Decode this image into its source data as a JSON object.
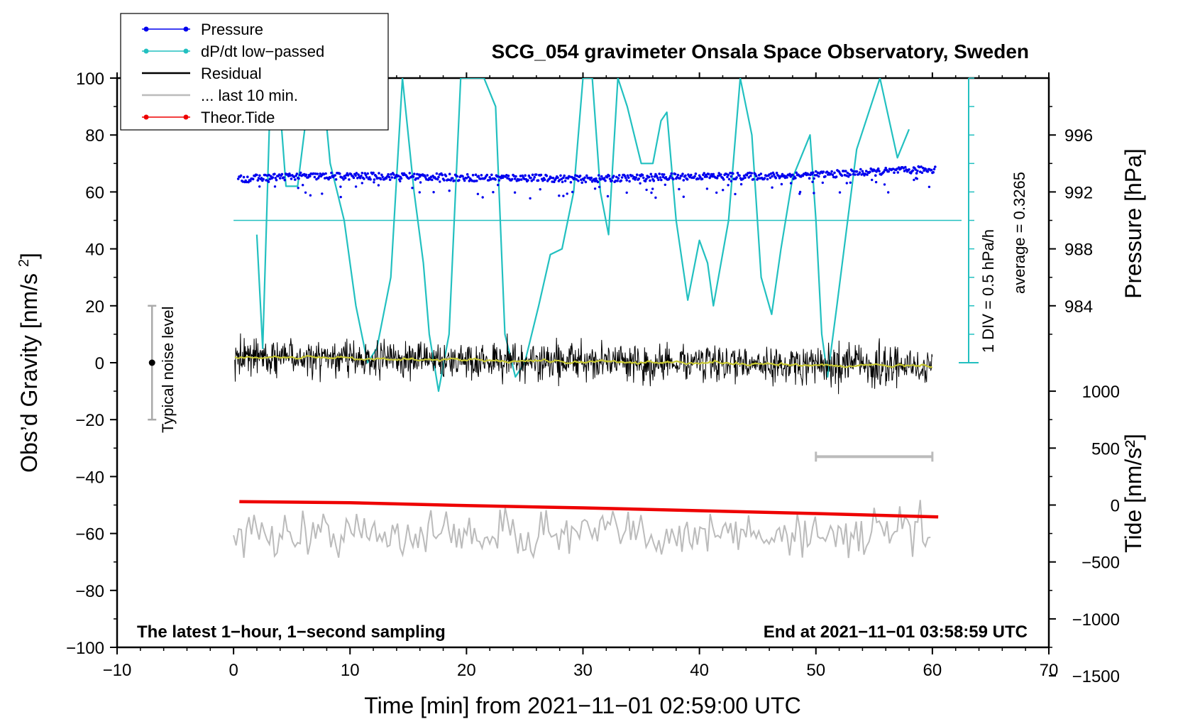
{
  "chart_data": {
    "type": "line",
    "title": "SCG_054 gravimeter Onsala Space Observatory, Sweden",
    "xlabel": "Time [min] from 2021−11−01 02:59:00 UTC",
    "ylabel_left": "Obs’d Gravity [nm/s²]",
    "ylabel_pressure": "Pressure [hPa]",
    "ylabel_tide": "Tide [nm/s²]",
    "xlim": [
      -10,
      70
    ],
    "ylim": [
      -100,
      100
    ],
    "pressure_range": [
      980,
      1000
    ],
    "tide_range": [
      -1500,
      1500
    ],
    "x_ticks": [
      "−10",
      "0",
      "10",
      "20",
      "30",
      "40",
      "50",
      "60",
      "70"
    ],
    "y_ticks": [
      "100",
      "80",
      "60",
      "40",
      "20",
      "0",
      "−20",
      "−40",
      "−60",
      "−80",
      "−100"
    ],
    "pressure_ticks": [
      "996",
      "992",
      "988",
      "984"
    ],
    "tide_ticks": [
      "1000",
      "500",
      "0",
      "−500",
      "−1000",
      "−1500"
    ],
    "legend": [
      {
        "label": "Pressure",
        "color": "#0000ee",
        "style": "line-dot"
      },
      {
        "label": "dP/dt low−passed",
        "color": "#22c0c0",
        "style": "line-dot"
      },
      {
        "label": "Residual",
        "color": "#000000",
        "style": "line"
      },
      {
        "label": "... last 10 min.",
        "color": "#bbbbbb",
        "style": "line"
      },
      {
        "label": "Theor.Tide",
        "color": "#ee0000",
        "style": "line-dot"
      }
    ],
    "annotations": {
      "noise_label": "Typical noise level",
      "noise_half_range": 20,
      "noise_x": -7,
      "dpdt_scale": "1 DIV = 0.5 hPa/h",
      "dpdt_average": "average = 0.3265",
      "dpdt_baseline_y": 50,
      "bottom_left": "The latest 1−hour, 1−second sampling",
      "bottom_right": "End at 2021−11−01 03:58:59 UTC",
      "last10_bar": [
        50,
        60
      ]
    },
    "series": {
      "pressure_hPa": {
        "name": "Pressure",
        "x": [
          0.4,
          5,
          10,
          15,
          20,
          25,
          30,
          35,
          40,
          45,
          50,
          55,
          60.3
        ],
        "values": [
          992.9,
          993.1,
          993.1,
          993.1,
          993.0,
          993.0,
          992.9,
          993.0,
          993.1,
          993.1,
          993.2,
          993.4,
          993.6
        ]
      },
      "dpdt": {
        "name": "dP/dt low−passed",
        "x": [
          2.0,
          2.5,
          3.2,
          3.8,
          4.5,
          5.5,
          6.2,
          7.0,
          7.6,
          8.3,
          9.5,
          10.5,
          11.5,
          12.3,
          13.5,
          14.5,
          15.5,
          16.3,
          16.8,
          17.6,
          18.5,
          19.5,
          20.5,
          21.5,
          22.5,
          23.3,
          24.2,
          25.0,
          26.2,
          27.2,
          28.2,
          29.2,
          30.0,
          30.8,
          31.5,
          32.2,
          33.0,
          33.8,
          35.0,
          36.0,
          36.7,
          37.2,
          38.0,
          39.0,
          40.0,
          40.7,
          41.2,
          42.5,
          43.5,
          44.5,
          45.3,
          46.2,
          47.0,
          48.0,
          49.5,
          50.0,
          50.5,
          51.0,
          51.8,
          53.5,
          55.5,
          57.0,
          58.0
        ],
        "values": [
          45,
          5,
          100,
          100,
          62,
          62,
          85,
          100,
          100,
          70,
          50,
          20,
          0,
          5,
          30,
          100,
          60,
          35,
          10,
          -10,
          10,
          100,
          100,
          100,
          90,
          10,
          -5,
          0,
          20,
          38,
          40,
          60,
          100,
          100,
          60,
          45,
          100,
          90,
          70,
          70,
          85,
          88,
          50,
          22,
          43,
          35,
          20,
          50,
          100,
          80,
          30,
          17,
          40,
          65,
          80,
          50,
          10,
          -5,
          20,
          75,
          100,
          72,
          82
        ]
      },
      "theor_tide": {
        "name": "Theor.Tide",
        "x": [
          0.5,
          10,
          20,
          30,
          40,
          50,
          60.5
        ],
        "values": [
          30,
          20,
          -5,
          -25,
          -50,
          -75,
          -105
        ]
      }
    }
  }
}
